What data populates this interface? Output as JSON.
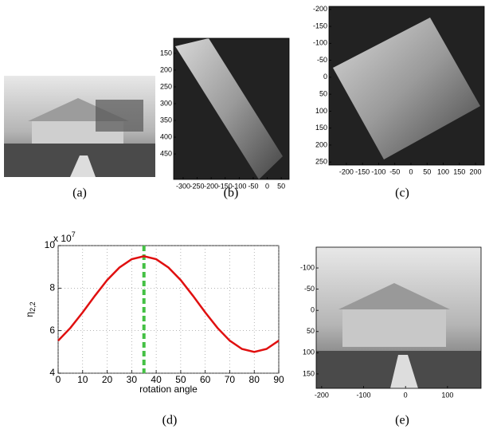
{
  "chart_data": {
    "type": "line",
    "label": "(d)",
    "x": [
      0,
      5,
      10,
      15,
      20,
      25,
      30,
      35,
      40,
      45,
      50,
      55,
      60,
      65,
      70,
      75,
      80,
      85,
      90
    ],
    "series": [
      {
        "color": "#e01010",
        "values": [
          5.53,
          6.13,
          6.86,
          7.64,
          8.38,
          8.97,
          9.36,
          9.5,
          9.36,
          8.97,
          8.38,
          7.64,
          6.86,
          6.13,
          5.53,
          5.14,
          5.0,
          5.14,
          5.53
        ]
      }
    ],
    "vline": {
      "x": 35,
      "color": "#44c044"
    },
    "xlim": [
      0,
      90
    ],
    "xticks": [
      0,
      10,
      20,
      30,
      40,
      50,
      60,
      70,
      80,
      90
    ],
    "ylim": [
      4,
      10
    ],
    "yticks": [
      4,
      6,
      8,
      10
    ],
    "y_multiplier": "x 10",
    "y_multiplier_exp": "7",
    "xlabel": "rotation angle",
    "ylabel": "η",
    "ylabel_sub": "2,2",
    "grid": true
  },
  "panels": [
    {
      "label": "(a)"
    },
    {
      "label": "(b)",
      "xlim": [
        -334,
        78
      ],
      "ylim": [
        105,
        526
      ],
      "xticks": [
        -300,
        -250,
        -200,
        -150,
        -100,
        -50,
        0,
        50
      ],
      "yticks": [
        150,
        200,
        250,
        300,
        350,
        400,
        450
      ]
    },
    {
      "label": "(c)",
      "xlim": [
        -254,
        227
      ],
      "ylim": [
        -209,
        259
      ],
      "xticks": [
        -200,
        -150,
        -100,
        -50,
        0,
        50,
        100,
        150,
        200
      ],
      "yticks": [
        -200,
        -150,
        -100,
        -50,
        0,
        50,
        100,
        150,
        200,
        250
      ]
    },
    {
      "label": "(e)",
      "xlim": [
        -213,
        180
      ],
      "ylim": [
        -149,
        184
      ],
      "xticks": [
        -200,
        -100,
        0,
        100
      ],
      "yticks": [
        -100,
        -50,
        0,
        50,
        100,
        150
      ]
    }
  ]
}
